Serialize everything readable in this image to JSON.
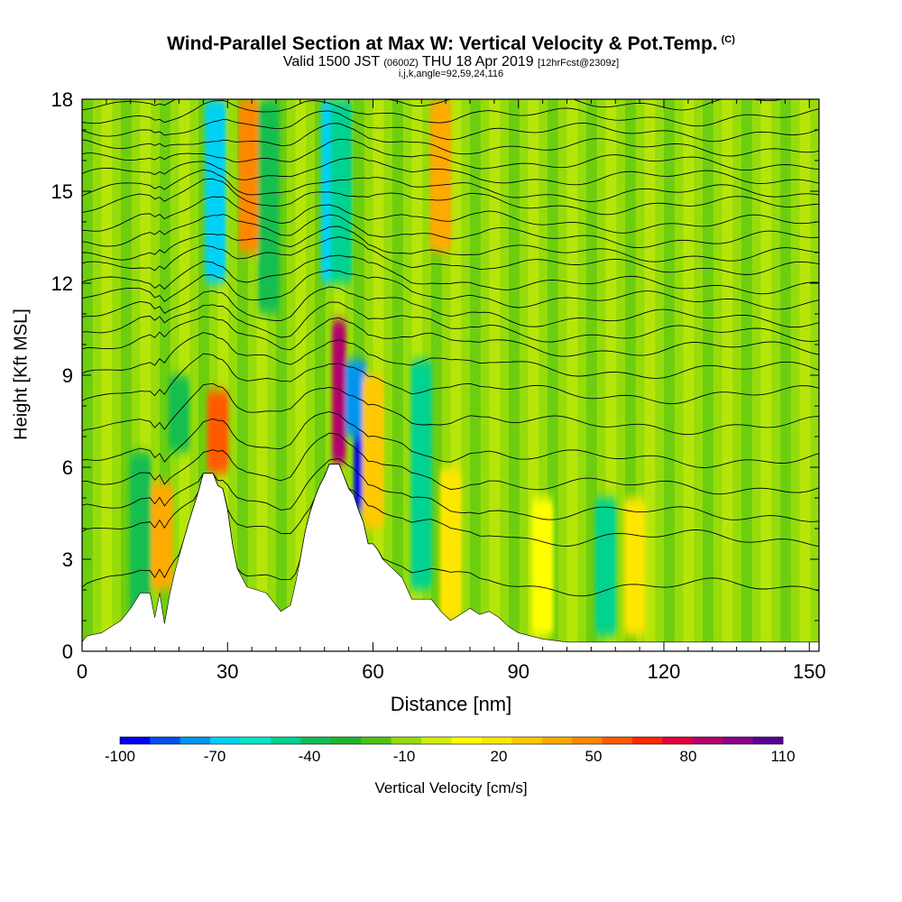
{
  "header": {
    "title": "Wind-Parallel Section at Max W: Vertical Velocity & Pot.Temp.",
    "title_mark": "(C)",
    "subtitle_a": "Valid 1500 JST",
    "subtitle_b": "(0600Z)",
    "subtitle_c": "THU 18 Apr 2019",
    "subtitle_d": "[12hrFcst@2309z]",
    "info": "i,j,k,angle=92,59,24,116"
  },
  "chart_data": {
    "type": "heatmap",
    "title": "Wind-Parallel Section at Max W: Vertical Velocity & Pot.Temp.",
    "xlabel": "Distance [nm]",
    "ylabel": "Height [Kft MSL]",
    "xlim": [
      0,
      152
    ],
    "ylim": [
      0,
      18
    ],
    "x_ticks": [
      0,
      30,
      60,
      90,
      120,
      150
    ],
    "y_ticks": [
      0,
      3,
      6,
      9,
      12,
      15,
      18
    ],
    "colorbar": {
      "label": "Vertical Velocity [cm/s]",
      "levels": [
        -100,
        -90,
        -80,
        -70,
        -60,
        -50,
        -40,
        -30,
        -20,
        -10,
        0,
        10,
        20,
        30,
        40,
        50,
        60,
        70,
        80,
        90,
        100,
        110
      ],
      "tick_labels": [
        "-100",
        "-70",
        "-40",
        "-10",
        "20",
        "50",
        "80",
        "110"
      ],
      "colors": [
        "#0000f0",
        "#0050f0",
        "#0096f0",
        "#00d2f5",
        "#00e6c8",
        "#00d290",
        "#12be50",
        "#20b428",
        "#4cc314",
        "#96dc0a",
        "#d2ee0a",
        "#ffff00",
        "#ffe600",
        "#ffc800",
        "#ffaa00",
        "#ff8700",
        "#ff5a00",
        "#ff2800",
        "#e6003c",
        "#b4006e",
        "#8c008c",
        "#5a0096"
      ]
    },
    "terrain": [
      [
        0,
        0.3
      ],
      [
        1,
        0.5
      ],
      [
        4,
        0.6
      ],
      [
        8,
        1.0
      ],
      [
        10,
        1.4
      ],
      [
        12,
        1.9
      ],
      [
        14,
        1.9
      ],
      [
        15,
        1.1
      ],
      [
        16,
        1.9
      ],
      [
        17,
        0.9
      ],
      [
        18,
        1.8
      ],
      [
        19,
        2.5
      ],
      [
        20,
        3.1
      ],
      [
        22,
        4.2
      ],
      [
        24,
        5.2
      ],
      [
        25,
        5.8
      ],
      [
        27,
        5.8
      ],
      [
        28,
        5.4
      ],
      [
        29,
        5.3
      ],
      [
        30,
        4.6
      ],
      [
        31,
        3.5
      ],
      [
        32,
        2.7
      ],
      [
        33,
        2.4
      ],
      [
        34,
        2.1
      ],
      [
        36,
        2.0
      ],
      [
        38,
        1.9
      ],
      [
        40,
        1.5
      ],
      [
        41,
        1.3
      ],
      [
        43,
        1.5
      ],
      [
        44,
        2.2
      ],
      [
        45,
        3.0
      ],
      [
        46,
        3.9
      ],
      [
        47,
        4.5
      ],
      [
        48,
        5.0
      ],
      [
        49,
        5.4
      ],
      [
        50,
        5.7
      ],
      [
        51,
        6.1
      ],
      [
        53,
        6.1
      ],
      [
        54,
        5.7
      ],
      [
        55,
        5.3
      ],
      [
        56,
        5.1
      ],
      [
        57,
        4.6
      ],
      [
        58,
        4.2
      ],
      [
        59,
        3.5
      ],
      [
        60,
        3.5
      ],
      [
        61,
        3.3
      ],
      [
        62,
        3.0
      ],
      [
        64,
        2.7
      ],
      [
        66,
        2.4
      ],
      [
        68,
        1.7
      ],
      [
        72,
        1.7
      ],
      [
        74,
        1.3
      ],
      [
        76,
        1.0
      ],
      [
        78,
        1.2
      ],
      [
        80,
        1.4
      ],
      [
        82,
        1.2
      ],
      [
        84,
        1.3
      ],
      [
        86,
        1.1
      ],
      [
        88,
        0.8
      ],
      [
        90,
        0.6
      ],
      [
        95,
        0.4
      ],
      [
        100,
        0.3
      ],
      [
        152,
        0.3
      ]
    ],
    "theta_contours_kft": [
      2.0,
      3.6,
      4.4,
      5.3,
      6.2,
      7.3,
      8.3,
      9.1,
      9.8,
      10.3,
      10.8,
      11.4,
      11.9,
      12.5,
      12.9,
      13.4,
      13.9,
      14.5,
      14.9,
      15.4,
      15.9,
      16.4,
      16.9,
      17.4,
      17.9
    ],
    "velocity_features": [
      {
        "x": 53.0,
        "y_bottom": 6.1,
        "y_top": 10.8,
        "value": 100
      },
      {
        "x": 57.5,
        "y_bottom": 4.6,
        "y_top": 8.8,
        "value": -100
      },
      {
        "x": 56.5,
        "y_bottom": 7.0,
        "y_top": 9.5,
        "value": -70
      },
      {
        "x": 51.5,
        "y_bottom": 12.0,
        "y_top": 18.0,
        "value": -60
      },
      {
        "x": 53.5,
        "y_bottom": 12.0,
        "y_top": 18.0,
        "value": -40
      },
      {
        "x": 28.0,
        "y_bottom": 5.8,
        "y_top": 8.5,
        "value": 70
      },
      {
        "x": 16.5,
        "y_bottom": 2.0,
        "y_top": 5.5,
        "value": 50
      },
      {
        "x": 34.5,
        "y_bottom": 13.0,
        "y_top": 18.0,
        "value": 60
      },
      {
        "x": 27.5,
        "y_bottom": 12.0,
        "y_top": 18.0,
        "value": -60
      },
      {
        "x": 38.5,
        "y_bottom": 11.0,
        "y_top": 18.0,
        "value": -30
      },
      {
        "x": 74.0,
        "y_bottom": 13.0,
        "y_top": 18.0,
        "value": 50
      },
      {
        "x": 60.0,
        "y_bottom": 4.0,
        "y_top": 9.0,
        "value": 40
      },
      {
        "x": 70.0,
        "y_bottom": 2.0,
        "y_top": 9.5,
        "value": -40
      },
      {
        "x": 76.0,
        "y_bottom": 1.0,
        "y_top": 6.0,
        "value": 30
      },
      {
        "x": 108.0,
        "y_bottom": 0.5,
        "y_top": 5.0,
        "value": -40
      },
      {
        "x": 114.0,
        "y_bottom": 0.5,
        "y_top": 5.0,
        "value": 30
      },
      {
        "x": 95.0,
        "y_bottom": 0.5,
        "y_top": 5.0,
        "value": 20
      },
      {
        "x": 12.0,
        "y_bottom": 1.0,
        "y_top": 6.5,
        "value": -30
      },
      {
        "x": 20.0,
        "y_bottom": 6.5,
        "y_top": 9.0,
        "value": -30
      }
    ]
  }
}
